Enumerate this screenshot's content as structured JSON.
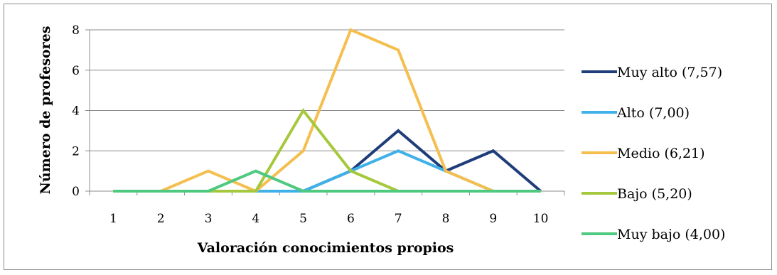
{
  "chart_data": {
    "type": "line",
    "title": "",
    "xlabel": "Valoración conocimientos propios",
    "ylabel": "Número de profesores",
    "categories": [
      "1",
      "2",
      "3",
      "4",
      "5",
      "6",
      "7",
      "8",
      "9",
      "10"
    ],
    "ylim": [
      0,
      8
    ],
    "yticks": [
      "0",
      "2",
      "4",
      "6",
      "8"
    ],
    "grid": true,
    "legend_position": "right",
    "series": [
      {
        "name": "Muy alto (7,57)",
        "color": "#1f3d7a",
        "values": [
          0,
          0,
          0,
          0,
          0,
          1,
          3,
          1,
          2,
          0
        ]
      },
      {
        "name": "Alto (7,00)",
        "color": "#3fb0e8",
        "values": [
          0,
          0,
          0,
          0,
          0,
          1,
          2,
          1,
          0,
          0
        ]
      },
      {
        "name": "Medio (6,21)",
        "color": "#f5bf4f",
        "values": [
          0,
          0,
          1,
          0,
          2,
          8,
          7,
          1,
          0,
          0
        ]
      },
      {
        "name": "Bajo (5,20)",
        "color": "#a5c83c",
        "values": [
          0,
          0,
          0,
          0,
          4,
          1,
          0,
          0,
          0,
          0
        ]
      },
      {
        "name": "Muy bajo (4,00)",
        "color": "#4ec97f",
        "values": [
          0,
          0,
          0,
          1,
          0,
          0,
          0,
          0,
          0,
          0
        ]
      }
    ]
  }
}
